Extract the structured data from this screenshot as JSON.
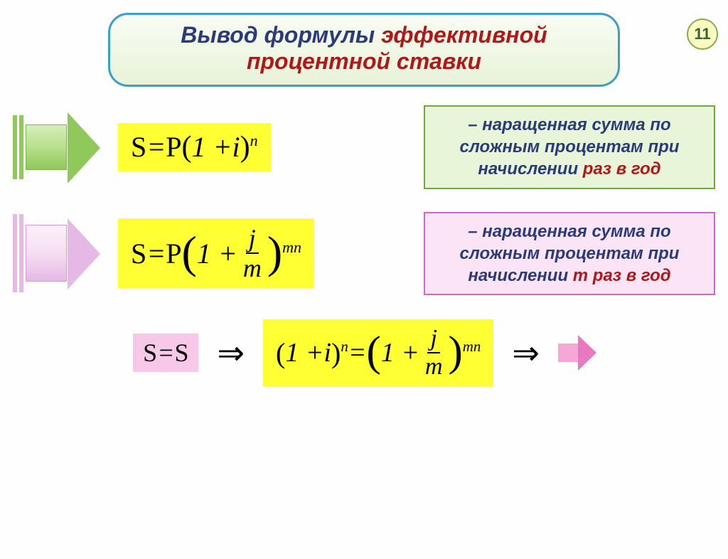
{
  "page_number": "11",
  "badge": {
    "bg": "#fdfac1",
    "border": "#7fb04a",
    "text_color": "#2c692e"
  },
  "title": {
    "line1_plain": "Вывод формулы ",
    "line1_red": "эффективной",
    "line2_red": "процентной ставки",
    "plain_color": "#2a3b7a",
    "red_color": "#b01818",
    "border_color": "#3aa0c8",
    "bg_top": "#f9fcf4",
    "bg_bottom": "#e8f3d8"
  },
  "row1": {
    "arrow": {
      "bar_color": "#8fc95a",
      "body_fill": "#b7df8c",
      "body_border": "#7db548",
      "head_color": "#8fc95a"
    },
    "formula_bg": "#ffff33",
    "formula_html": "<span class='upright'>S</span> = <span class='upright'>P</span><span class='midparen'>(</span>1 + <span>i</span><span class='midparen'>)</span><sup>n</sup>",
    "desc": {
      "bg": "#e8f5d9",
      "border": "#6fa83e",
      "text_color": "#2a3b7a",
      "highlight_color": "#b01818",
      "prefix": "– наращенная сумма по сложным процентам при начислении ",
      "highlight": "раз в год"
    }
  },
  "row2": {
    "arrow": {
      "bar_color": "#e6b8e6",
      "body_fill": "#f5def1",
      "body_border": "#d49ad4",
      "head_color": "#e6b8e6"
    },
    "formula_bg": "#ffff33",
    "formula_html": "<span class='upright'>S</span> = <span class='upright'>P</span><span class='bigparen'>(</span> 1 + <span class='frac'><span class='num'>j</span><span class='den'>m</span></span><span class='bigparen'>)</span><sup>mn</sup>",
    "desc": {
      "bg": "#fae4f5",
      "border": "#c86ac0",
      "text_color": "#2a3b7a",
      "highlight_color": "#b01818",
      "prefix": "– наращенная сумма по сложным процентам при ",
      "mid": "начислении ",
      "highlight": "m раз в год"
    }
  },
  "row3": {
    "eq1_bg": "#f8c8e8",
    "eq1_html": "<span class='upright'>S</span> = <span class='upright'>S</span>",
    "implies": "⇒",
    "eq2_bg": "#ffff33",
    "eq2_html": "<span class='midparen'>(</span>1 + <span>i</span><span class='midparen'>)</span><sup>n</sup> = <span class='bigparen'>(</span>1 + <span class='frac'><span class='num'>j</span><span class='den'>m</span></span><span class='bigparen'>)</span><sup>mn</sup>",
    "arrow": {
      "body_fill": "#f5a8d8",
      "head_color": "#e878c0"
    }
  }
}
